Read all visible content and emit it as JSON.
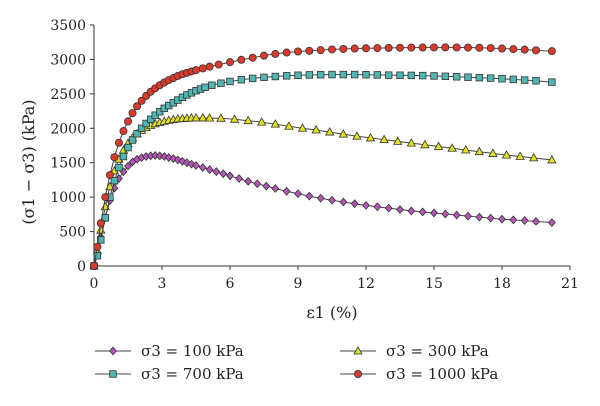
{
  "chart_data": {
    "type": "line",
    "xlabel": "ε1 (%)",
    "ylabel": "(σ1 − σ3) (kPa)",
    "xlim": [
      0,
      21
    ],
    "ylim": [
      0,
      3500
    ],
    "xticks": [
      0,
      3,
      6,
      9,
      12,
      15,
      18,
      21
    ],
    "yticks": [
      0,
      500,
      1000,
      1500,
      2000,
      2500,
      3000,
      3500
    ],
    "grid": false,
    "legend_position": "bottom",
    "series": [
      {
        "name": "σ3 = 100 kPa",
        "color": "#b455b8",
        "marker": "diamond",
        "x": [
          0,
          0.15,
          0.3,
          0.5,
          0.7,
          0.9,
          1.1,
          1.3,
          1.5,
          1.7,
          1.9,
          2.1,
          2.3,
          2.5,
          2.7,
          2.9,
          3.1,
          3.3,
          3.5,
          3.7,
          3.9,
          4.1,
          4.3,
          4.5,
          4.8,
          5.1,
          5.4,
          5.7,
          6.0,
          6.4,
          6.8,
          7.2,
          7.6,
          8.0,
          8.5,
          9.0,
          9.5,
          10.0,
          10.5,
          11.0,
          11.5,
          12.0,
          12.5,
          13.0,
          13.5,
          14.0,
          14.5,
          15.0,
          15.5,
          16.0,
          16.5,
          17.0,
          17.5,
          18.0,
          18.5,
          19.0,
          19.5,
          20.2
        ],
        "y": [
          0,
          180,
          420,
          700,
          950,
          1130,
          1270,
          1370,
          1450,
          1510,
          1550,
          1575,
          1590,
          1600,
          1605,
          1600,
          1590,
          1575,
          1560,
          1540,
          1520,
          1500,
          1480,
          1460,
          1430,
          1400,
          1370,
          1340,
          1310,
          1270,
          1230,
          1195,
          1160,
          1125,
          1085,
          1050,
          1015,
          985,
          955,
          930,
          905,
          880,
          860,
          840,
          820,
          800,
          785,
          770,
          755,
          740,
          725,
          710,
          695,
          680,
          670,
          660,
          648,
          630
        ]
      },
      {
        "name": "σ3 = 300 kPa",
        "color": "#e4e01c",
        "marker": "triangle",
        "x": [
          0,
          0.15,
          0.3,
          0.5,
          0.7,
          0.9,
          1.1,
          1.3,
          1.5,
          1.7,
          1.9,
          2.1,
          2.3,
          2.5,
          2.7,
          2.9,
          3.1,
          3.3,
          3.5,
          3.7,
          3.9,
          4.1,
          4.3,
          4.5,
          4.8,
          5.1,
          5.6,
          6.2,
          6.8,
          7.4,
          8.0,
          8.6,
          9.2,
          9.8,
          10.4,
          11.0,
          11.6,
          12.2,
          12.8,
          13.4,
          14.0,
          14.6,
          15.2,
          15.8,
          16.4,
          17.0,
          17.6,
          18.2,
          18.8,
          19.4,
          20.2
        ],
        "y": [
          0,
          220,
          520,
          860,
          1150,
          1380,
          1550,
          1680,
          1780,
          1860,
          1920,
          1970,
          2010,
          2040,
          2065,
          2085,
          2100,
          2115,
          2125,
          2135,
          2140,
          2145,
          2148,
          2150,
          2150,
          2148,
          2145,
          2130,
          2110,
          2090,
          2060,
          2030,
          2000,
          1975,
          1945,
          1915,
          1885,
          1860,
          1835,
          1810,
          1785,
          1760,
          1735,
          1710,
          1685,
          1660,
          1635,
          1610,
          1590,
          1570,
          1540
        ]
      },
      {
        "name": "σ3 = 700 kPa",
        "color": "#4fb6b2",
        "marker": "square",
        "x": [
          0,
          0.15,
          0.3,
          0.5,
          0.7,
          0.9,
          1.1,
          1.3,
          1.5,
          1.7,
          1.9,
          2.1,
          2.3,
          2.5,
          2.7,
          2.9,
          3.1,
          3.3,
          3.5,
          3.7,
          3.9,
          4.1,
          4.3,
          4.5,
          4.7,
          4.9,
          5.2,
          5.6,
          6.0,
          6.5,
          7.0,
          7.5,
          8.0,
          8.5,
          9.0,
          9.5,
          10.0,
          10.5,
          11.0,
          11.5,
          12.0,
          12.5,
          13.0,
          13.5,
          14.0,
          14.5,
          15.0,
          15.5,
          16.0,
          16.5,
          17.0,
          17.5,
          18.0,
          18.5,
          19.0,
          19.5,
          20.2
        ],
        "y": [
          0,
          150,
          380,
          700,
          1000,
          1240,
          1430,
          1590,
          1720,
          1830,
          1920,
          2000,
          2070,
          2130,
          2190,
          2240,
          2290,
          2330,
          2370,
          2410,
          2450,
          2485,
          2515,
          2545,
          2570,
          2595,
          2625,
          2655,
          2680,
          2705,
          2725,
          2740,
          2752,
          2762,
          2770,
          2775,
          2778,
          2780,
          2780,
          2780,
          2778,
          2775,
          2772,
          2770,
          2768,
          2765,
          2760,
          2755,
          2748,
          2742,
          2735,
          2728,
          2720,
          2710,
          2700,
          2690,
          2670
        ]
      },
      {
        "name": "σ3 = 1000 kPa",
        "color": "#d93a2b",
        "marker": "circle",
        "x": [
          0,
          0.15,
          0.3,
          0.5,
          0.7,
          0.9,
          1.1,
          1.3,
          1.5,
          1.7,
          1.9,
          2.1,
          2.3,
          2.5,
          2.7,
          2.9,
          3.1,
          3.3,
          3.5,
          3.7,
          3.9,
          4.1,
          4.3,
          4.5,
          4.8,
          5.1,
          5.5,
          6.0,
          6.5,
          7.0,
          7.5,
          8.0,
          8.5,
          9.0,
          9.5,
          10.0,
          10.5,
          11.0,
          11.5,
          12.0,
          12.5,
          13.0,
          13.5,
          14.0,
          14.5,
          15.0,
          15.5,
          16.0,
          16.5,
          17.0,
          17.5,
          18.0,
          18.5,
          19.0,
          19.5,
          20.2
        ],
        "y": [
          0,
          280,
          620,
          1000,
          1320,
          1580,
          1790,
          1960,
          2100,
          2220,
          2320,
          2400,
          2470,
          2530,
          2580,
          2625,
          2665,
          2700,
          2730,
          2760,
          2785,
          2805,
          2825,
          2845,
          2870,
          2895,
          2925,
          2960,
          2995,
          3025,
          3055,
          3080,
          3100,
          3115,
          3125,
          3135,
          3145,
          3152,
          3158,
          3162,
          3165,
          3168,
          3170,
          3172,
          3173,
          3174,
          3175,
          3174,
          3172,
          3170,
          3165,
          3158,
          3150,
          3142,
          3132,
          3120
        ]
      }
    ]
  }
}
